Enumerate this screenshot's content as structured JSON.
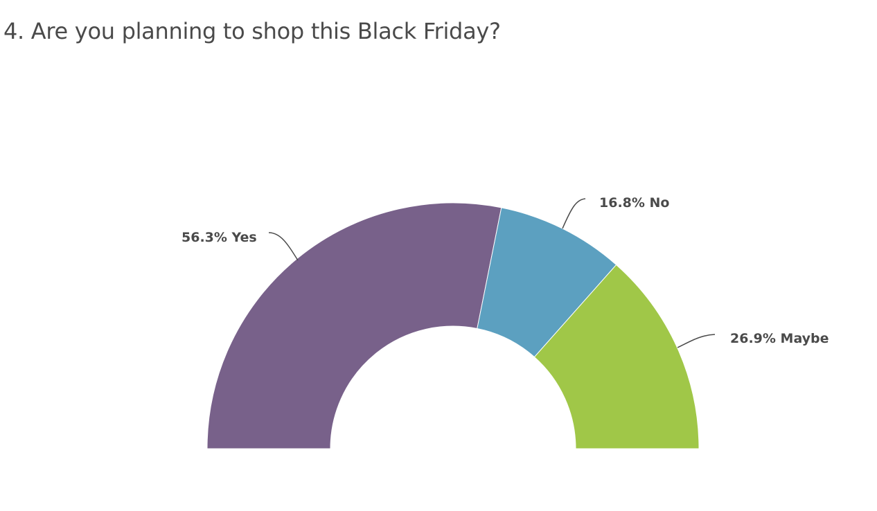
{
  "chart_data": {
    "type": "pie",
    "variant": "half-donut",
    "title": "4. Are you planning to shop this Black Friday?",
    "slices": [
      {
        "name": "Yes",
        "value": 56.3,
        "label": "56.3% Yes",
        "color": "#78618a"
      },
      {
        "name": "No",
        "value": 16.8,
        "label": "16.8% No",
        "color": "#5ca0c0"
      },
      {
        "name": "Maybe",
        "value": 26.9,
        "label": "26.9% Maybe",
        "color": "#a0c748"
      }
    ],
    "legend": "none"
  }
}
